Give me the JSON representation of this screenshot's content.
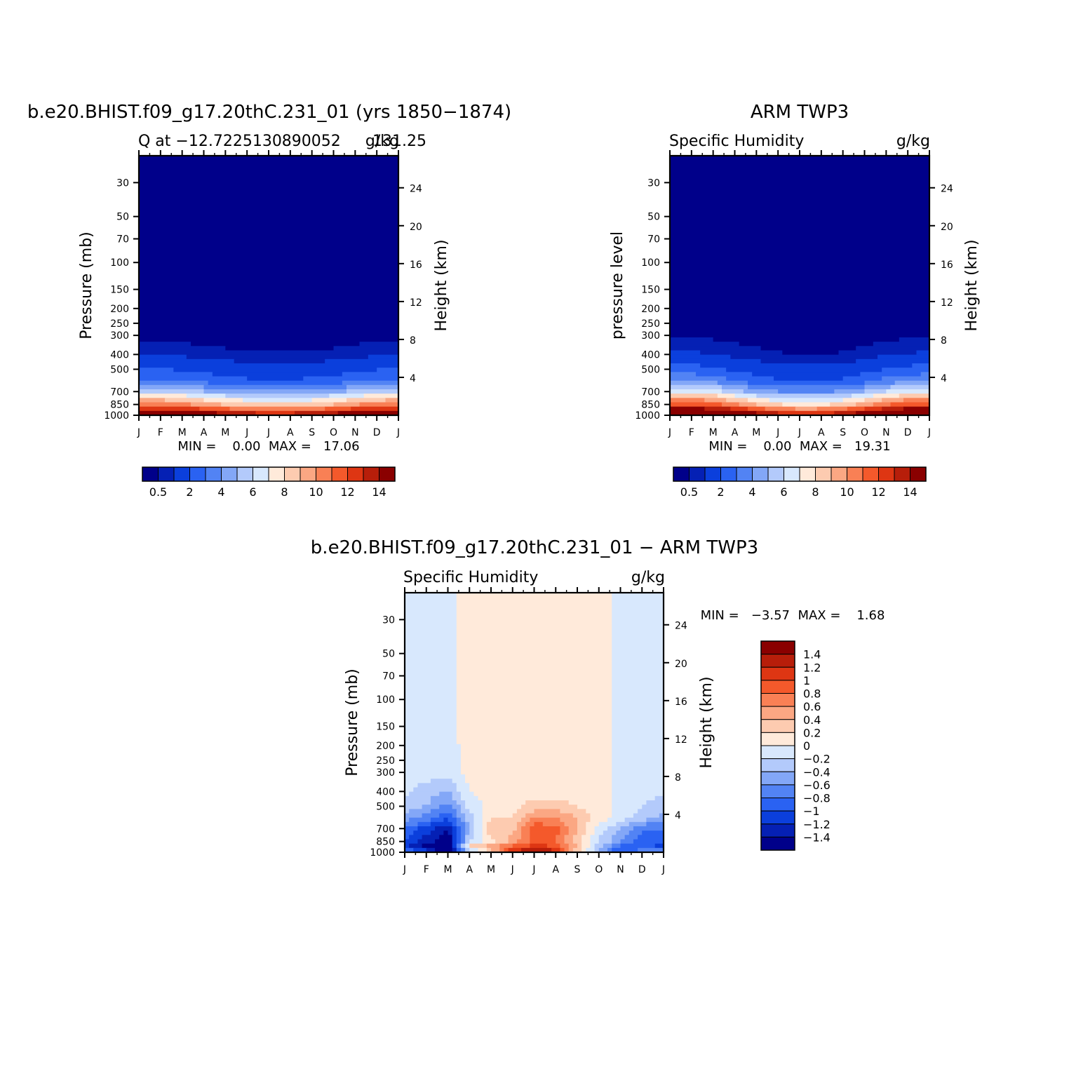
{
  "chart_data": [
    {
      "type": "heatmap",
      "title": "b.e20.BHIST.f09_g17.20thC.231_01 (yrs 1850−1874)",
      "left_label": "Q at −12.7225130890052",
      "right_label": "g/kg",
      "overlap_label": "131.25",
      "ylabel": "Pressure (mb)",
      "y2label": "Height (km)",
      "x_ticks": [
        "J",
        "F",
        "M",
        "A",
        "M",
        "J",
        "J",
        "A",
        "S",
        "O",
        "N",
        "D",
        "J"
      ],
      "y_ticks": [
        30,
        50,
        70,
        100,
        150,
        200,
        250,
        300,
        400,
        500,
        700,
        850,
        1000
      ],
      "y_tick_labels": [
        "30",
        "50",
        "70",
        "100",
        "150",
        "200",
        "250",
        "300",
        "400",
        "500",
        "700",
        "850",
        "1000"
      ],
      "y2_ticks": [
        24,
        20,
        16,
        12,
        8,
        4
      ],
      "ylim": [
        1000,
        20
      ],
      "stats": "MIN =    0.00  MAX =   17.06",
      "levels": [
        "0.5",
        "2",
        "4",
        "6",
        "8",
        "10",
        "12",
        "14"
      ],
      "colors": [
        "#00008a",
        "#0520b4",
        "#0b3fdc",
        "#2a62f2",
        "#5283f4",
        "#83a7f7",
        "#b3cafb",
        "#d8e8fd",
        "#ffeada",
        "#fdcbb0",
        "#fba783",
        "#f98055",
        "#f4592b",
        "#de3613",
        "#b71e0a",
        "#8a0000"
      ],
      "profile_month": [
        0,
        1,
        2,
        3,
        4,
        5,
        6,
        7,
        8,
        9,
        10,
        11,
        12
      ],
      "profile_pressure": [
        1000,
        925,
        850,
        700,
        600,
        500,
        400,
        300
      ],
      "profile_values": [
        [
          16.6,
          13.5,
          10.8,
          6.0,
          3.3,
          2.0,
          0.9,
          0.3
        ],
        [
          16.5,
          13.4,
          10.7,
          6.0,
          3.3,
          2.0,
          0.9,
          0.3
        ],
        [
          16.2,
          13.1,
          10.2,
          5.7,
          3.1,
          1.9,
          0.85,
          0.28
        ],
        [
          15.7,
          12.6,
          9.6,
          5.0,
          2.7,
          1.6,
          0.7,
          0.22
        ],
        [
          15.0,
          11.9,
          8.9,
          4.6,
          2.5,
          1.5,
          0.65,
          0.2
        ],
        [
          14.4,
          11.2,
          8.2,
          4.2,
          2.2,
          1.35,
          0.6,
          0.18
        ],
        [
          14.2,
          11.0,
          8.0,
          4.1,
          2.1,
          1.3,
          0.55,
          0.17
        ],
        [
          14.3,
          11.1,
          8.1,
          4.1,
          2.1,
          1.3,
          0.55,
          0.17
        ],
        [
          14.6,
          11.4,
          8.4,
          4.3,
          2.3,
          1.4,
          0.6,
          0.18
        ],
        [
          15.1,
          12.0,
          9.0,
          4.7,
          2.5,
          1.5,
          0.65,
          0.2
        ],
        [
          15.9,
          12.8,
          9.9,
          5.3,
          2.9,
          1.75,
          0.78,
          0.25
        ],
        [
          16.4,
          13.3,
          10.5,
          5.8,
          3.2,
          1.95,
          0.88,
          0.29
        ],
        [
          16.6,
          13.5,
          10.8,
          6.0,
          3.3,
          2.0,
          0.9,
          0.3
        ]
      ]
    },
    {
      "type": "heatmap",
      "title": "ARM TWP3",
      "left_label": "Specific Humidity",
      "right_label": "g/kg",
      "ylabel": "pressure level",
      "y2label": "Height (km)",
      "x_ticks": [
        "J",
        "F",
        "M",
        "A",
        "M",
        "J",
        "J",
        "A",
        "S",
        "O",
        "N",
        "D",
        "J"
      ],
      "y_ticks": [
        30,
        50,
        70,
        100,
        150,
        200,
        250,
        300,
        400,
        500,
        700,
        850,
        1000
      ],
      "y_tick_labels": [
        "30",
        "50",
        "70",
        "100",
        "150",
        "200",
        "250",
        "300",
        "400",
        "500",
        "700",
        "850",
        "1000"
      ],
      "y2_ticks": [
        24,
        20,
        16,
        12,
        8,
        4
      ],
      "ylim": [
        1000,
        20
      ],
      "stats": "MIN =    0.00  MAX =   19.31",
      "levels": [
        "0.5",
        "2",
        "4",
        "6",
        "8",
        "10",
        "12",
        "14"
      ],
      "colors": [
        "#00008a",
        "#0520b4",
        "#0b3fdc",
        "#2a62f2",
        "#5283f4",
        "#83a7f7",
        "#b3cafb",
        "#d8e8fd",
        "#ffeada",
        "#fdcbb0",
        "#fba783",
        "#f98055",
        "#f4592b",
        "#de3613",
        "#b71e0a",
        "#8a0000"
      ],
      "profile_month": [
        0,
        1,
        2,
        3,
        4,
        5,
        6,
        7,
        8,
        9,
        10,
        11,
        12
      ],
      "profile_pressure": [
        1000,
        925,
        850,
        700,
        600,
        500,
        400,
        300
      ],
      "profile_values": [
        [
          18.0,
          15.0,
          12.0,
          7.0,
          4.0,
          2.4,
          1.1,
          0.4
        ],
        [
          18.0,
          15.0,
          12.0,
          7.0,
          4.0,
          2.4,
          1.1,
          0.4
        ],
        [
          17.6,
          14.6,
          11.5,
          6.6,
          3.7,
          2.2,
          1.0,
          0.36
        ],
        [
          16.5,
          13.4,
          10.2,
          5.4,
          3.0,
          1.8,
          0.8,
          0.28
        ],
        [
          15.3,
          12.1,
          9.0,
          4.6,
          2.5,
          1.5,
          0.65,
          0.22
        ],
        [
          14.3,
          11.1,
          8.1,
          4.0,
          2.1,
          1.3,
          0.55,
          0.18
        ],
        [
          13.8,
          10.6,
          7.7,
          3.8,
          2.0,
          1.2,
          0.5,
          0.16
        ],
        [
          13.9,
          10.7,
          7.8,
          3.8,
          2.0,
          1.2,
          0.5,
          0.16
        ],
        [
          14.6,
          11.4,
          8.4,
          4.2,
          2.2,
          1.3,
          0.55,
          0.18
        ],
        [
          15.7,
          12.6,
          9.5,
          5.0,
          2.7,
          1.6,
          0.7,
          0.24
        ],
        [
          17.0,
          13.9,
          10.8,
          6.0,
          3.4,
          2.0,
          0.9,
          0.32
        ],
        [
          17.8,
          14.8,
          11.8,
          6.8,
          3.9,
          2.3,
          1.05,
          0.38
        ],
        [
          18.0,
          15.0,
          12.0,
          7.0,
          4.0,
          2.4,
          1.1,
          0.4
        ]
      ]
    },
    {
      "type": "heatmap",
      "title": "b.e20.BHIST.f09_g17.20thC.231_01 − ARM TWP3",
      "left_label": "Specific Humidity",
      "right_label": "g/kg",
      "ylabel": "Pressure (mb)",
      "y2label": "Height (km)",
      "x_ticks": [
        "J",
        "F",
        "M",
        "A",
        "M",
        "J",
        "J",
        "A",
        "S",
        "O",
        "N",
        "D",
        "J"
      ],
      "y_ticks": [
        30,
        50,
        70,
        100,
        150,
        200,
        250,
        300,
        400,
        500,
        700,
        850,
        1000
      ],
      "y_tick_labels": [
        "30",
        "50",
        "70",
        "100",
        "150",
        "200",
        "250",
        "300",
        "400",
        "500",
        "700",
        "850",
        "1000"
      ],
      "y2_ticks": [
        24,
        20,
        16,
        12,
        8,
        4
      ],
      "ylim": [
        1000,
        20
      ],
      "stats": "MIN =   −3.57  MAX =    1.68",
      "levels": [
        "1.4",
        "1.2",
        "1",
        "0.8",
        "0.6",
        "0.4",
        "0.2",
        "0",
        "−0.2",
        "−0.4",
        "−0.6",
        "−0.8",
        "−1",
        "−1.2",
        "−1.4"
      ],
      "colors": [
        "#8a0000",
        "#b71e0a",
        "#de3613",
        "#f4592b",
        "#f98055",
        "#fba783",
        "#fdcbb0",
        "#ffeada",
        "#d8e8fd",
        "#b3cafb",
        "#83a7f7",
        "#5283f4",
        "#2a62f2",
        "#0b3fdc",
        "#0520b4",
        "#00008a"
      ],
      "profile_month": [
        0,
        1,
        2,
        3,
        4,
        5,
        6,
        7,
        8,
        9,
        10,
        11,
        12
      ],
      "profile_pressure": [
        1000,
        925,
        850,
        700,
        600,
        500,
        400,
        300,
        200,
        100
      ],
      "profile_values": [
        [
          -0.5,
          -1.2,
          -1.0,
          -0.8,
          -0.5,
          -0.3,
          -0.15,
          -0.1,
          -0.05,
          -0.02
        ],
        [
          -1.0,
          -1.5,
          -1.3,
          -1.1,
          -0.7,
          -0.4,
          -0.3,
          -0.1,
          -0.05,
          -0.02
        ],
        [
          -1.6,
          -1.8,
          -1.6,
          -1.4,
          -1.0,
          -0.7,
          -0.4,
          -0.1,
          -0.05,
          -0.02
        ],
        [
          -0.6,
          0.3,
          -0.2,
          -0.4,
          -0.3,
          -0.1,
          0.0,
          0.05,
          0.05,
          0.03
        ],
        [
          0.2,
          0.6,
          0.1,
          0.4,
          0.2,
          0.05,
          0.05,
          0.05,
          0.05,
          0.05
        ],
        [
          1.2,
          0.9,
          0.5,
          0.3,
          0.2,
          0.1,
          0.05,
          0.05,
          0.05,
          0.05
        ],
        [
          1.6,
          1.1,
          0.9,
          1.0,
          0.6,
          0.3,
          0.1,
          0.05,
          0.05,
          0.05
        ],
        [
          1.3,
          1.0,
          0.8,
          0.9,
          0.6,
          0.3,
          0.1,
          0.05,
          0.05,
          0.05
        ],
        [
          0.2,
          0.4,
          0.3,
          0.4,
          0.4,
          0.2,
          0.05,
          0.05,
          0.05,
          0.05
        ],
        [
          -0.4,
          -0.3,
          -0.2,
          -0.1,
          0.1,
          0.1,
          0.05,
          0.05,
          0.05,
          0.05
        ],
        [
          -1.1,
          -0.9,
          -0.6,
          -0.4,
          -0.1,
          -0.05,
          -0.05,
          -0.05,
          -0.05,
          -0.05
        ],
        [
          -0.7,
          -0.8,
          -0.9,
          -0.8,
          -0.3,
          -0.2,
          -0.15,
          -0.05,
          -0.05,
          -0.05
        ],
        [
          -0.5,
          -1.2,
          -1.0,
          -0.8,
          -0.5,
          -0.3,
          -0.15,
          -0.1,
          -0.05,
          -0.02
        ]
      ]
    }
  ]
}
